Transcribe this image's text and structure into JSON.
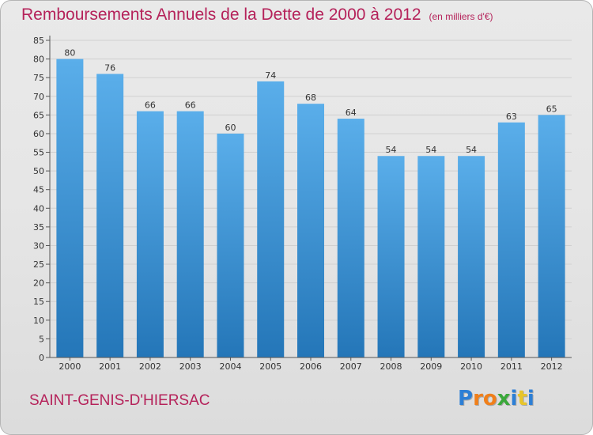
{
  "title": {
    "main": "Remboursements Annuels de la Dette de 2000 à 2012",
    "unit": "(en milliers d'€)"
  },
  "commune": "SAINT-GENIS-D'HIERSAC",
  "logo": {
    "letters": [
      "P",
      "r",
      "o",
      "x",
      "i",
      "t",
      "i"
    ],
    "colors": [
      "#2c7fd6",
      "#f07f1a",
      "#f07f1a",
      "#3aa83a",
      "#2c7fd6",
      "#e8c52a",
      "#2c7fd6"
    ]
  },
  "colors": {
    "title": "#b5225a",
    "bar_light": "#5aaeea",
    "bar_dark": "#2476b8",
    "axis": "#555555",
    "grid": "#d0d0d0"
  },
  "chart_data": {
    "type": "bar",
    "categories": [
      "2000",
      "2001",
      "2002",
      "2003",
      "2004",
      "2005",
      "2006",
      "2007",
      "2008",
      "2009",
      "2010",
      "2011",
      "2012"
    ],
    "values": [
      80,
      76,
      66,
      66,
      60,
      74,
      68,
      64,
      54,
      54,
      54,
      63,
      65
    ],
    "ylim": [
      0,
      85
    ],
    "yticks": [
      0,
      5,
      10,
      15,
      20,
      25,
      30,
      35,
      40,
      45,
      50,
      55,
      60,
      65,
      70,
      75,
      80,
      85
    ],
    "grid": true,
    "xlabel": "",
    "ylabel": ""
  }
}
